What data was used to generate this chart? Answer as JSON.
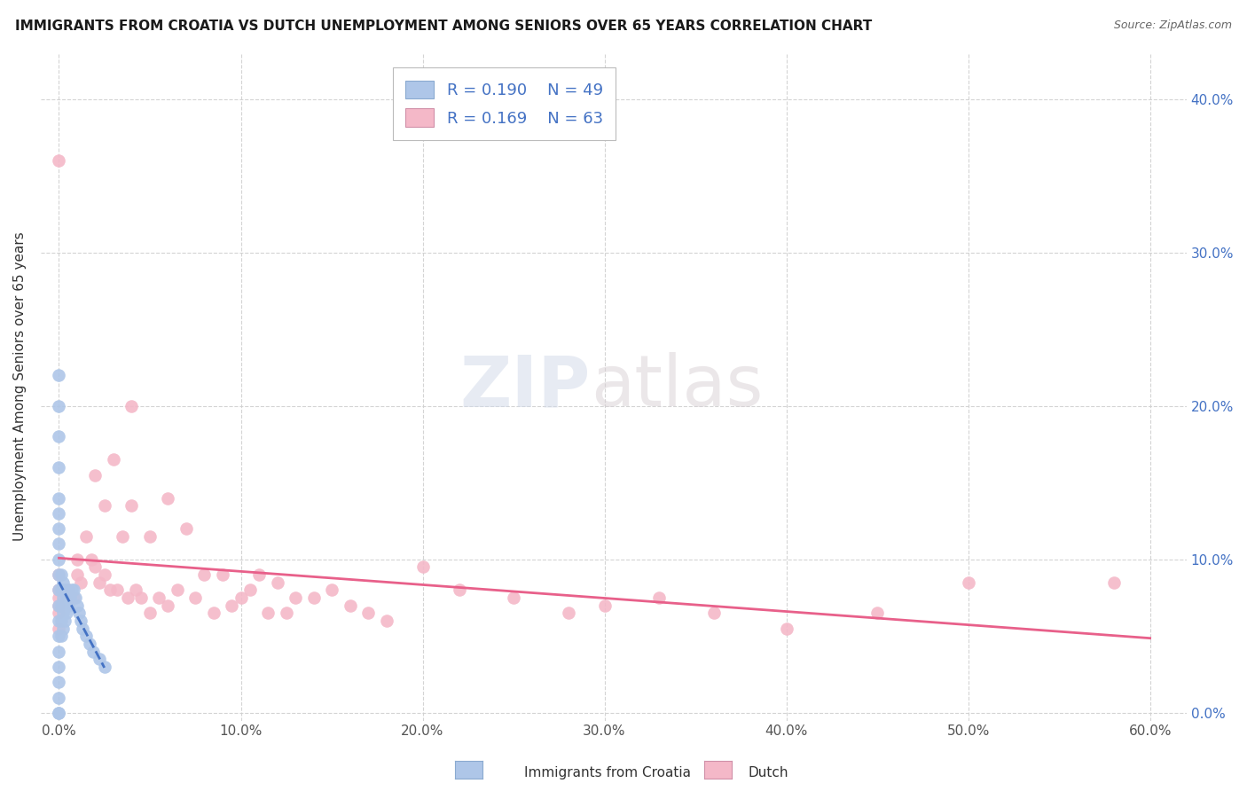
{
  "title": "IMMIGRANTS FROM CROATIA VS DUTCH UNEMPLOYMENT AMONG SENIORS OVER 65 YEARS CORRELATION CHART",
  "source": "Source: ZipAtlas.com",
  "ylabel": "Unemployment Among Seniors over 65 years",
  "xlim": [
    -0.01,
    0.62
  ],
  "ylim": [
    -0.005,
    0.43
  ],
  "r_croatia": 0.19,
  "n_croatia": 49,
  "r_dutch": 0.169,
  "n_dutch": 63,
  "color_croatia": "#aec6e8",
  "color_dutch": "#f4b8c8",
  "trendline_croatia": "#4472c4",
  "trendline_dutch": "#e8608a",
  "watermark_zip": "ZIP",
  "watermark_atlas": "atlas",
  "legend_labels": [
    "Immigrants from Croatia",
    "Dutch"
  ],
  "x_ticks": [
    0.0,
    0.1,
    0.2,
    0.3,
    0.4,
    0.5,
    0.6
  ],
  "y_ticks": [
    0.0,
    0.1,
    0.2,
    0.3,
    0.4
  ],
  "croatia_x": [
    0.0,
    0.0,
    0.0,
    0.0,
    0.0,
    0.0,
    0.0,
    0.0,
    0.0,
    0.0,
    0.0,
    0.0,
    0.0,
    0.0,
    0.0,
    0.0,
    0.0,
    0.0,
    0.0,
    0.0,
    0.001,
    0.001,
    0.001,
    0.001,
    0.001,
    0.002,
    0.002,
    0.002,
    0.002,
    0.003,
    0.003,
    0.003,
    0.004,
    0.004,
    0.005,
    0.005,
    0.006,
    0.007,
    0.008,
    0.009,
    0.01,
    0.011,
    0.012,
    0.013,
    0.015,
    0.017,
    0.019,
    0.022,
    0.025
  ],
  "croatia_y": [
    0.0,
    0.0,
    0.01,
    0.02,
    0.03,
    0.04,
    0.05,
    0.06,
    0.07,
    0.08,
    0.09,
    0.1,
    0.11,
    0.12,
    0.13,
    0.14,
    0.16,
    0.18,
    0.2,
    0.22,
    0.05,
    0.06,
    0.07,
    0.08,
    0.09,
    0.055,
    0.065,
    0.075,
    0.085,
    0.06,
    0.07,
    0.08,
    0.065,
    0.075,
    0.07,
    0.08,
    0.075,
    0.08,
    0.08,
    0.075,
    0.07,
    0.065,
    0.06,
    0.055,
    0.05,
    0.045,
    0.04,
    0.035,
    0.03
  ],
  "dutch_x": [
    0.0,
    0.0,
    0.0,
    0.0,
    0.0,
    0.0,
    0.0,
    0.005,
    0.008,
    0.01,
    0.01,
    0.012,
    0.015,
    0.018,
    0.02,
    0.02,
    0.022,
    0.025,
    0.025,
    0.028,
    0.03,
    0.032,
    0.035,
    0.038,
    0.04,
    0.04,
    0.042,
    0.045,
    0.05,
    0.05,
    0.055,
    0.06,
    0.06,
    0.065,
    0.07,
    0.075,
    0.08,
    0.085,
    0.09,
    0.095,
    0.1,
    0.105,
    0.11,
    0.115,
    0.12,
    0.125,
    0.13,
    0.14,
    0.15,
    0.16,
    0.17,
    0.18,
    0.2,
    0.22,
    0.25,
    0.28,
    0.3,
    0.33,
    0.36,
    0.4,
    0.45,
    0.5,
    0.58
  ],
  "dutch_y": [
    0.055,
    0.065,
    0.07,
    0.075,
    0.08,
    0.09,
    0.36,
    0.08,
    0.075,
    0.09,
    0.1,
    0.085,
    0.115,
    0.1,
    0.095,
    0.155,
    0.085,
    0.09,
    0.135,
    0.08,
    0.165,
    0.08,
    0.115,
    0.075,
    0.135,
    0.2,
    0.08,
    0.075,
    0.115,
    0.065,
    0.075,
    0.14,
    0.07,
    0.08,
    0.12,
    0.075,
    0.09,
    0.065,
    0.09,
    0.07,
    0.075,
    0.08,
    0.09,
    0.065,
    0.085,
    0.065,
    0.075,
    0.075,
    0.08,
    0.07,
    0.065,
    0.06,
    0.095,
    0.08,
    0.075,
    0.065,
    0.07,
    0.075,
    0.065,
    0.055,
    0.065,
    0.085,
    0.085
  ]
}
